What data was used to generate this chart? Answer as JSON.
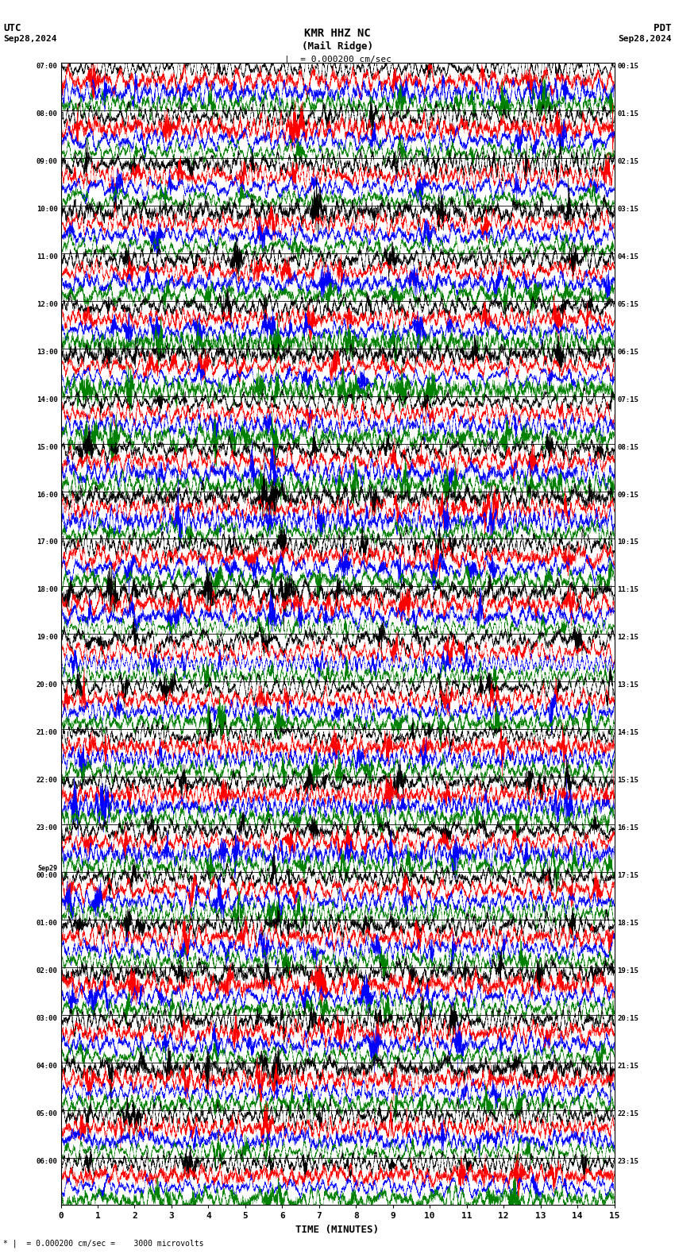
{
  "title_line1": "KMR HHZ NC",
  "title_line2": "(Mail Ridge)",
  "scale_text": "= 0.000200 cm/sec",
  "utc_label": "UTC",
  "pdt_label": "PDT",
  "date_left": "Sep28,2024",
  "date_right": "Sep28,2024",
  "footer_text": "= 0.000200 cm/sec =    3000 microvolts",
  "xlabel": "TIME (MINUTES)",
  "left_times": [
    "07:00",
    "08:00",
    "09:00",
    "10:00",
    "11:00",
    "12:00",
    "13:00",
    "14:00",
    "15:00",
    "16:00",
    "17:00",
    "18:00",
    "19:00",
    "20:00",
    "21:00",
    "22:00",
    "23:00",
    "Sep29\n00:00",
    "01:00",
    "02:00",
    "03:00",
    "04:00",
    "05:00",
    "06:00"
  ],
  "right_times": [
    "00:15",
    "01:15",
    "02:15",
    "03:15",
    "04:15",
    "05:15",
    "06:15",
    "07:15",
    "08:15",
    "09:15",
    "10:15",
    "11:15",
    "12:15",
    "13:15",
    "14:15",
    "15:15",
    "16:15",
    "17:15",
    "18:15",
    "19:15",
    "20:15",
    "21:15",
    "22:15",
    "23:15"
  ],
  "trace_colors": [
    "black",
    "red",
    "blue",
    "green"
  ],
  "num_rows": 24,
  "traces_per_row": 4,
  "bg_color": "white",
  "fig_width": 8.5,
  "fig_height": 15.84,
  "xmin": 0,
  "xmax": 15,
  "xticks": [
    0,
    1,
    2,
    3,
    4,
    5,
    6,
    7,
    8,
    9,
    10,
    11,
    12,
    13,
    14,
    15
  ]
}
